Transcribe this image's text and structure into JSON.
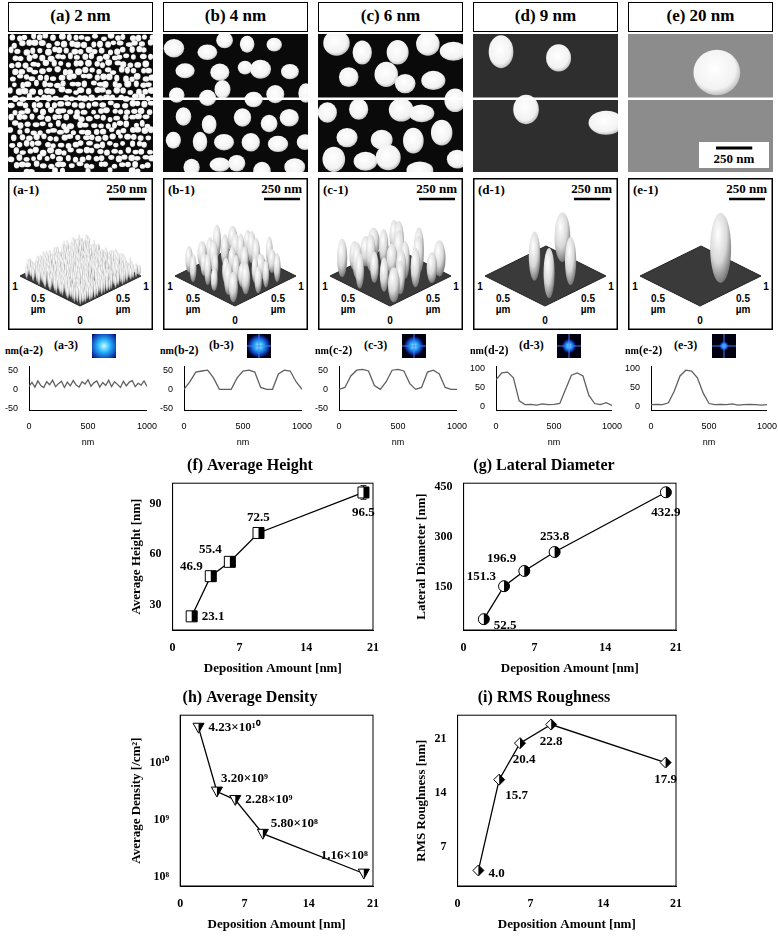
{
  "panels": [
    {
      "title": "(a) 2 nm",
      "view_label": "(a-1)",
      "view_scale_bar": "250 nm",
      "fft_label": "(a-3)"
    },
    {
      "title": "(b) 4 nm",
      "view_label": "(b-1)",
      "view_scale_bar": "250 nm",
      "fft_label": "(b-3)"
    },
    {
      "title": "(c) 6 nm",
      "view_label": "(c-1)",
      "view_scale_bar": "250 nm",
      "fft_label": "(c-3)"
    },
    {
      "title": "(d) 9 nm",
      "view_label": "(d-1)",
      "view_scale_bar": "250 nm",
      "fft_label": "(d-3)"
    },
    {
      "title": "(e) 20 nm",
      "scale_bar": "250 nm",
      "view_label": "(e-1)",
      "view_scale_bar": "250 nm",
      "fft_label": "(e-3)"
    }
  ],
  "view_axis_labels": {
    "end": "1",
    "mid": "0.5",
    "unit": "µm",
    "origin": "0"
  },
  "chart_data": [
    {
      "type": "line",
      "title": "(a-2)",
      "x_label": "nm",
      "y_label": "nm",
      "x": [
        0,
        25,
        50,
        75,
        100,
        125,
        150,
        175,
        200,
        225,
        250,
        275,
        300,
        325,
        350,
        375,
        400,
        425,
        450,
        475,
        500,
        525,
        550,
        575,
        600,
        625,
        650,
        675,
        700,
        725,
        750,
        775,
        800,
        825,
        850,
        875,
        900,
        925,
        950,
        975,
        1000
      ],
      "values": [
        8,
        18,
        6,
        22,
        10,
        5,
        20,
        12,
        24,
        7,
        15,
        21,
        5,
        19,
        9,
        23,
        11,
        6,
        20,
        14,
        25,
        8,
        17,
        22,
        6,
        18,
        10,
        24,
        7,
        20,
        13,
        5,
        21,
        9,
        19,
        23,
        7,
        16,
        11,
        22,
        8
      ],
      "color": "#606060",
      "line_style": "solid",
      "grid": false,
      "xlim": [
        0,
        1000
      ],
      "xticks": [
        0,
        500,
        1000
      ],
      "ylim": [
        -55,
        60
      ],
      "yticks": [
        -50,
        0,
        50
      ]
    },
    {
      "type": "line",
      "title": "(b-2)",
      "x_label": "nm",
      "y_label": "nm",
      "x": [
        0,
        50,
        100,
        150,
        200,
        250,
        300,
        350,
        400,
        450,
        500,
        550,
        600,
        650,
        700,
        750,
        800,
        850,
        900,
        950,
        1000
      ],
      "values": [
        0,
        20,
        45,
        48,
        50,
        30,
        0,
        0,
        0,
        30,
        48,
        50,
        45,
        5,
        0,
        0,
        40,
        50,
        48,
        20,
        0
      ],
      "color": "#606060",
      "line_style": "solid",
      "grid": false,
      "xlim": [
        0,
        1000
      ],
      "xticks": [
        0,
        500,
        1000
      ],
      "ylim": [
        -55,
        60
      ],
      "yticks": [
        -50,
        0,
        50
      ]
    },
    {
      "type": "line",
      "title": "(c-2)",
      "x_label": "nm",
      "y_label": "nm",
      "x": [
        0,
        50,
        100,
        150,
        200,
        250,
        300,
        350,
        400,
        450,
        500,
        550,
        600,
        650,
        700,
        750,
        800,
        850,
        900,
        950,
        1000
      ],
      "values": [
        0,
        5,
        35,
        50,
        52,
        48,
        10,
        0,
        20,
        50,
        52,
        48,
        15,
        0,
        5,
        45,
        50,
        40,
        5,
        0,
        0
      ],
      "color": "#606060",
      "line_style": "solid",
      "grid": false,
      "xlim": [
        0,
        1000
      ],
      "xticks": [
        0,
        500,
        1000
      ],
      "ylim": [
        -55,
        60
      ],
      "yticks": [
        -50,
        0,
        50
      ]
    },
    {
      "type": "line",
      "title": "(d-2)",
      "x_label": "nm",
      "y_label": "nm",
      "x": [
        0,
        50,
        100,
        150,
        200,
        250,
        300,
        350,
        400,
        450,
        500,
        550,
        600,
        650,
        700,
        750,
        800,
        850,
        900,
        950,
        1000
      ],
      "values": [
        70,
        88,
        90,
        75,
        15,
        5,
        6,
        4,
        7,
        5,
        6,
        8,
        45,
        82,
        88,
        80,
        30,
        8,
        5,
        10,
        3
      ],
      "color": "#606060",
      "line_style": "solid",
      "grid": false,
      "xlim": [
        0,
        1000
      ],
      "xticks": [
        0,
        500,
        1000
      ],
      "ylim": [
        -10,
        105
      ],
      "yticks": [
        0,
        50,
        100
      ]
    },
    {
      "type": "line",
      "title": "(e-2)",
      "x_label": "nm",
      "y_label": "nm",
      "x": [
        0,
        50,
        100,
        150,
        200,
        250,
        300,
        350,
        400,
        450,
        500,
        550,
        600,
        650,
        700,
        750,
        800,
        850,
        900,
        950,
        1000
      ],
      "values": [
        5,
        6,
        5,
        10,
        40,
        80,
        95,
        93,
        75,
        35,
        8,
        5,
        6,
        5,
        7,
        4,
        5,
        6,
        5,
        4,
        5
      ],
      "color": "#606060",
      "line_style": "solid",
      "grid": false,
      "xlim": [
        0,
        1000
      ],
      "xticks": [
        0,
        500,
        1000
      ],
      "ylim": [
        -10,
        105
      ],
      "yticks": [
        0,
        50,
        100
      ]
    },
    {
      "type": "line",
      "title": "(f) Average Height",
      "x_label": "Deposition Amount [nm]",
      "y_label": "Average Height [nm]",
      "x": [
        2,
        4,
        6,
        9,
        20
      ],
      "values": [
        23.1,
        46.9,
        55.4,
        72.5,
        96.5
      ],
      "errors": [
        1.5,
        2,
        2,
        2.5,
        4
      ],
      "color": "#000000",
      "marker": "square",
      "line_style": "solid",
      "data_labels": true,
      "grid": false,
      "xlim": [
        0,
        21
      ],
      "xticks": [
        0,
        7,
        14,
        21
      ],
      "ylim": [
        15,
        102
      ],
      "yticks": [
        30,
        60,
        90
      ]
    },
    {
      "type": "line",
      "title": "(g) Lateral Diameter",
      "x_label": "Deposition Amount [nm]",
      "y_label": "Lateral Diameter [nm]",
      "x": [
        2,
        4,
        6,
        9,
        20
      ],
      "values": [
        52.5,
        151.3,
        196.9,
        253.8,
        432.9
      ],
      "errors": [
        3,
        5,
        5,
        6,
        8
      ],
      "color": "#000000",
      "marker": "circle",
      "line_style": "solid",
      "data_labels": true,
      "grid": false,
      "xlim": [
        0,
        21
      ],
      "xticks": [
        0,
        7,
        14,
        21
      ],
      "ylim": [
        20,
        460
      ],
      "yticks": [
        150,
        300,
        450
      ]
    },
    {
      "type": "line",
      "title": "(h) Average Density",
      "x_label": "Deposition Amount [nm]",
      "y_label": "Average Density [/cm²]",
      "x": [
        2,
        4,
        6,
        9,
        20
      ],
      "values": [
        42300000000.0,
        3200000000.0,
        2280000000.0,
        580000000.0,
        116000000.0
      ],
      "value_labels": [
        "4.23×10¹⁰",
        "3.20×10⁹",
        "2.28×10⁹",
        "5.80×10⁸",
        "1.16×10⁸"
      ],
      "color": "#000000",
      "marker": "triangle-down",
      "line_style": "solid",
      "data_labels": true,
      "grid": false,
      "log": "y",
      "xlim": [
        0,
        21
      ],
      "xticks": [
        0,
        7,
        14,
        21
      ],
      "ylim": [
        70000000.0,
        70000000000.0
      ],
      "yticks": [
        {
          "value": 100000000.0,
          "label": "10⁸"
        },
        {
          "value": 1000000000.0,
          "label": "10⁹"
        },
        {
          "value": 10000000000.0,
          "label": "10¹⁰"
        }
      ]
    },
    {
      "type": "line",
      "title": "(i) RMS Roughness",
      "x_label": "Deposition Amount [nm]",
      "y_label": "RMS Roughness [nm]",
      "x": [
        2,
        4,
        6,
        9,
        20
      ],
      "values": [
        4.0,
        15.7,
        20.4,
        22.8,
        17.9
      ],
      "value_labels": [
        "4.0",
        "15.7",
        "20.4",
        "22.8",
        "17.9"
      ],
      "color": "#000000",
      "marker": "diamond",
      "line_style": "solid",
      "data_labels": true,
      "grid": false,
      "xlim": [
        0,
        21
      ],
      "xticks": [
        0,
        7,
        14,
        21
      ],
      "ylim": [
        2,
        24
      ],
      "yticks": [
        7,
        14,
        21
      ]
    }
  ]
}
